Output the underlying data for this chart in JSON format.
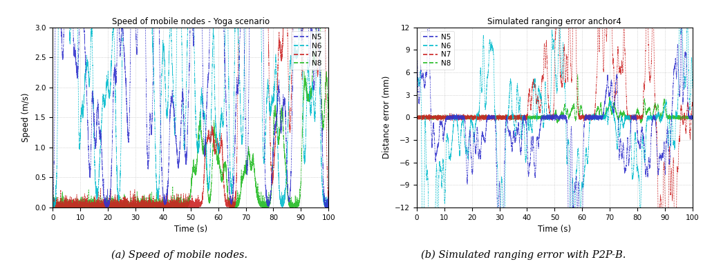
{
  "title_left": "Speed of mobile nodes - Yoga scenario",
  "title_right": "Simulated ranging error anchor4",
  "xlabel": "Time (s)",
  "ylabel_left": "Speed (m/s)",
  "ylabel_right": "Distance error (mm)",
  "xlim": [
    0,
    100
  ],
  "ylim_left": [
    0,
    3
  ],
  "ylim_right": [
    -12,
    12
  ],
  "yticks_left": [
    0,
    0.5,
    1.0,
    1.5,
    2.0,
    2.5,
    3.0
  ],
  "yticks_right": [
    -12,
    -9,
    -6,
    -3,
    0,
    3,
    6,
    9,
    12
  ],
  "xticks": [
    0,
    10,
    20,
    30,
    40,
    50,
    60,
    70,
    80,
    90,
    100
  ],
  "legend_labels": [
    "N5",
    "N6",
    "N7",
    "N8"
  ],
  "colors": {
    "N5": "#3333CC",
    "N6": "#00BBCC",
    "N7": "#CC2222",
    "N8": "#22BB22"
  },
  "caption_left": "(a) Speed of mobile nodes.",
  "caption_right": "(b) Simulated ranging error with P2P-B.",
  "background_color": "#ffffff",
  "grid_color": "#999999",
  "figsize": [
    10.17,
    3.96
  ],
  "dpi": 100
}
